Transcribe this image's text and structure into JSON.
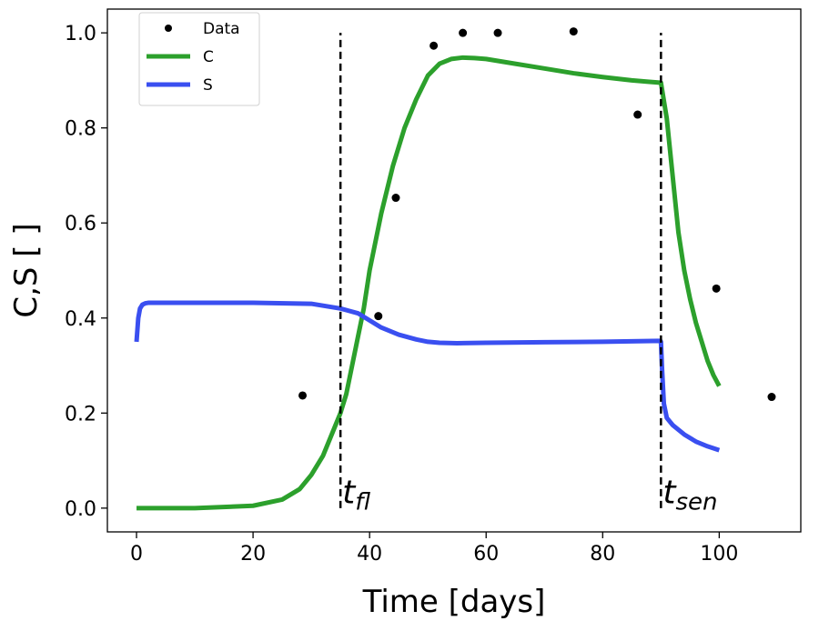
{
  "chart_data": {
    "type": "line",
    "title": "",
    "xlabel": "Time [days]",
    "ylabel": "C,S [ ]",
    "xlim": [
      -5,
      114
    ],
    "ylim": [
      -0.05,
      1.05
    ],
    "xticks": [
      0,
      20,
      40,
      60,
      80,
      100
    ],
    "yticks": [
      0.0,
      0.2,
      0.4,
      0.6,
      0.8,
      1.0
    ],
    "xtick_labels": [
      "0",
      "20",
      "40",
      "60",
      "80",
      "100"
    ],
    "ytick_labels": [
      "0.0",
      "0.2",
      "0.4",
      "0.6",
      "0.8",
      "1.0"
    ],
    "grid": false,
    "legend_position": "top-left",
    "legend": [
      "Data",
      "C",
      "S"
    ],
    "scatter": {
      "name": "Data",
      "color": "#000000",
      "x": [
        28.5,
        41.5,
        44.5,
        51,
        56,
        62,
        75,
        86,
        99.5,
        109
      ],
      "y": [
        0.237,
        0.404,
        0.653,
        0.973,
        1.0,
        1.0,
        1.003,
        0.828,
        0.462,
        0.234
      ]
    },
    "series": [
      {
        "name": "C",
        "color": "#2ca02c",
        "x": [
          0,
          10,
          20,
          25,
          28,
          30,
          32,
          34,
          35,
          36,
          37,
          38,
          39,
          40,
          42,
          44,
          46,
          48,
          50,
          52,
          54,
          56,
          58,
          60,
          65,
          70,
          75,
          80,
          85,
          88,
          90,
          91,
          92,
          93,
          94,
          95,
          96,
          97,
          98,
          99,
          100
        ],
        "y": [
          0.0,
          0.0,
          0.005,
          0.018,
          0.04,
          0.07,
          0.11,
          0.17,
          0.2,
          0.24,
          0.3,
          0.36,
          0.42,
          0.5,
          0.62,
          0.72,
          0.8,
          0.86,
          0.91,
          0.935,
          0.945,
          0.948,
          0.947,
          0.945,
          0.935,
          0.925,
          0.915,
          0.907,
          0.9,
          0.897,
          0.895,
          0.82,
          0.7,
          0.58,
          0.5,
          0.44,
          0.39,
          0.35,
          0.31,
          0.28,
          0.257
        ]
      },
      {
        "name": "S",
        "color": "#3a4ff0",
        "x": [
          0,
          0.3,
          0.6,
          1,
          1.5,
          2,
          10,
          20,
          30,
          35,
          38,
          40,
          42,
          45,
          48,
          50,
          52,
          55,
          60,
          70,
          80,
          89.9,
          90,
          90.2,
          90.5,
          91,
          92,
          94,
          96,
          98,
          100
        ],
        "y": [
          0.35,
          0.4,
          0.42,
          0.428,
          0.431,
          0.432,
          0.432,
          0.432,
          0.43,
          0.42,
          0.41,
          0.395,
          0.38,
          0.365,
          0.355,
          0.35,
          0.348,
          0.347,
          0.348,
          0.349,
          0.35,
          0.352,
          0.35,
          0.29,
          0.22,
          0.19,
          0.175,
          0.155,
          0.14,
          0.13,
          0.122
        ]
      }
    ],
    "vlines": [
      {
        "x": 35,
        "ymin": -0.0,
        "ymax": 1.0,
        "style": "dashed",
        "color": "#000000"
      },
      {
        "x": 90,
        "ymin": -0.0,
        "ymax": 1.0,
        "style": "dashed",
        "color": "#000000"
      }
    ],
    "annotations": [
      {
        "main": "t",
        "sub": "fl",
        "x": 35,
        "y": 0.01
      },
      {
        "main": "t",
        "sub": "sen",
        "x": 90,
        "y": 0.01
      }
    ]
  }
}
